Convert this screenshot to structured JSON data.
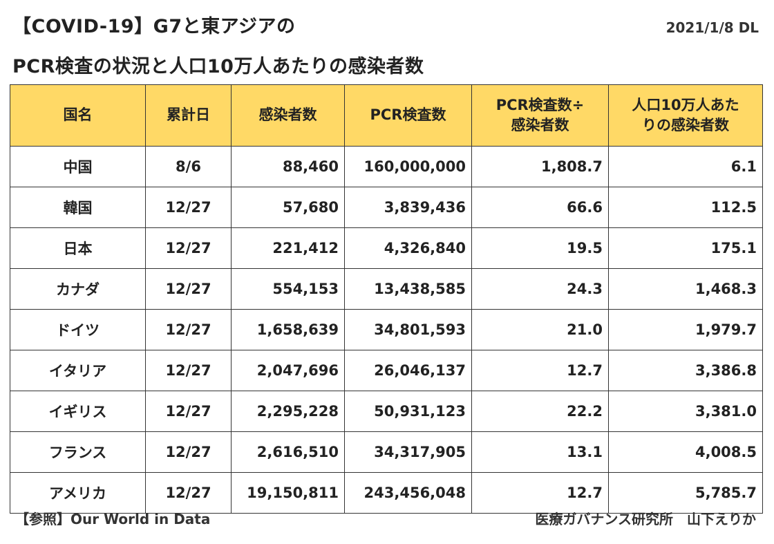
{
  "title": {
    "line1": "【COVID-19】G7と東アジアの",
    "line2": "PCR検査の状況と人口10万人あたりの感染者数",
    "download_date": "2021/1/8 DL"
  },
  "colors": {
    "header_fill": "#FFD966",
    "border": "#333333"
  },
  "chart_data": {
    "type": "table",
    "columns": [
      "国名",
      "累計日",
      "感染者数",
      "PCR検査数",
      "PCR検査数÷\n感染者数",
      "人口10万人あた\nりの感染者数"
    ],
    "rows": [
      [
        "中国",
        "8/6",
        "88,460",
        "160,000,000",
        "1,808.7",
        "6.1"
      ],
      [
        "韓国",
        "12/27",
        "57,680",
        "3,839,436",
        "66.6",
        "112.5"
      ],
      [
        "日本",
        "12/27",
        "221,412",
        "4,326,840",
        "19.5",
        "175.1"
      ],
      [
        "カナダ",
        "12/27",
        "554,153",
        "13,438,585",
        "24.3",
        "1,468.3"
      ],
      [
        "ドイツ",
        "12/27",
        "1,658,639",
        "34,801,593",
        "21.0",
        "1,979.7"
      ],
      [
        "イタリア",
        "12/27",
        "2,047,696",
        "26,046,137",
        "12.7",
        "3,386.8"
      ],
      [
        "イギリス",
        "12/27",
        "2,295,228",
        "50,931,123",
        "22.2",
        "3,381.0"
      ],
      [
        "フランス",
        "12/27",
        "2,616,510",
        "34,317,905",
        "13.1",
        "4,008.5"
      ],
      [
        "アメリカ",
        "12/27",
        "19,150,811",
        "243,456,048",
        "12.7",
        "5,785.7"
      ]
    ]
  },
  "footer": {
    "source": "【参照】Our World in Data",
    "author": "医療ガバナンス研究所　山下えりか"
  }
}
